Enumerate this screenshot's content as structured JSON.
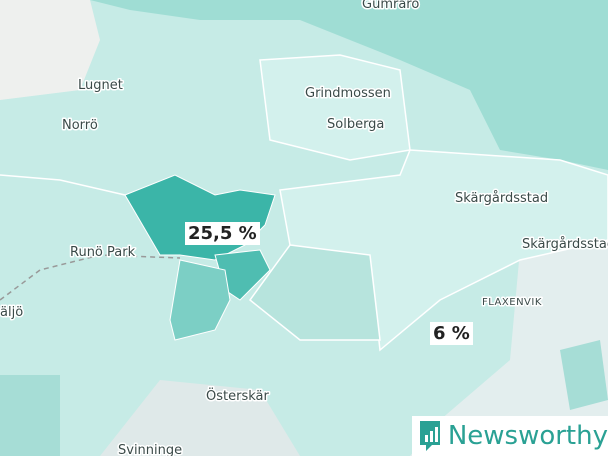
{
  "places": [
    "Gumraro",
    "Lugnet",
    "Norrö",
    "Grindmossen",
    "Solberga",
    "Skärgårdsstad",
    "Skärgårdsstad",
    "Runö Park",
    "äljö",
    "FLAXENVIK",
    "Österskär",
    "Svinninge"
  ],
  "regions": [
    {
      "label": "25,5 %"
    },
    {
      "label": "6 %"
    }
  ],
  "logo": {
    "text": "Newsworthy"
  }
}
